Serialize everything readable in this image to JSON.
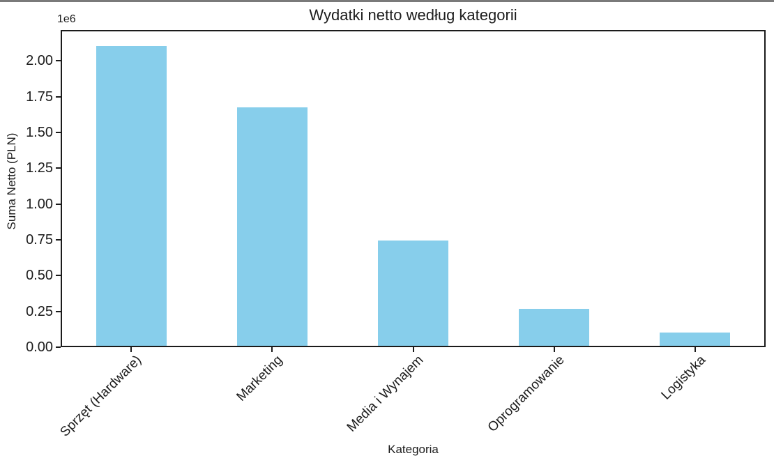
{
  "figure": {
    "top_border_color": "#7a7a7a",
    "background": "#ffffff",
    "text_color": "#1c1c1c",
    "spine_color": "#1b1b1b"
  },
  "chart_data": {
    "type": "bar",
    "title": "Wydatki netto według kategorii",
    "xlabel": "Kategoria",
    "ylabel": "Suma Netto (PLN)",
    "y_offset_label": "1e6",
    "categories": [
      "Sprzęt (Hardware)",
      "Marketing",
      "Media i Wynajem",
      "Oprogramowanie",
      "Logistyka"
    ],
    "values": [
      2110000,
      1680000,
      740000,
      260000,
      95000
    ],
    "bar_color": "#87CEEB",
    "ylim": [
      0,
      2215500
    ],
    "yticks": [
      0,
      250000,
      500000,
      750000,
      1000000,
      1250000,
      1500000,
      1750000,
      2000000
    ],
    "ytick_labels": [
      "0.00",
      "0.25",
      "0.50",
      "0.75",
      "1.00",
      "1.25",
      "1.50",
      "1.75",
      "2.00"
    ],
    "grid": false,
    "legend_position": "none",
    "bar_width_fraction": 0.5,
    "xtick_rotation_deg": 45
  }
}
